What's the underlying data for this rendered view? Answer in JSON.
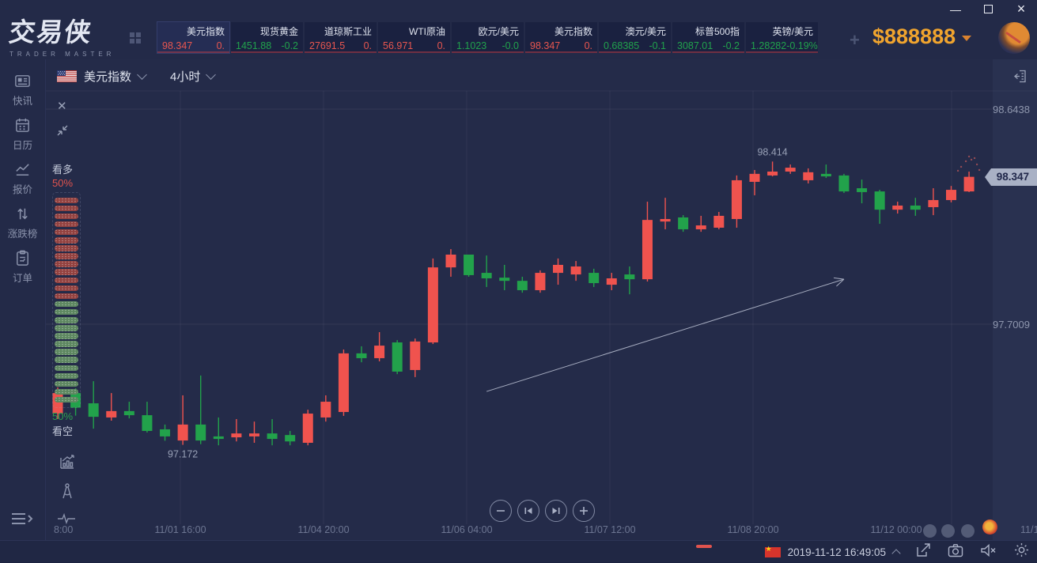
{
  "window": {
    "minimize": "—",
    "maximize": "",
    "close": "×"
  },
  "topbar": {
    "logo_title": "交易侠",
    "logo_subtitle": "TRADER MASTER",
    "balance": "$888888",
    "tabs": [
      {
        "name": "美元指数",
        "price": "98.347",
        "change": "0.",
        "dir": "up"
      },
      {
        "name": "现货黄金",
        "price": "1451.88",
        "change": "-0.2",
        "dir": "down"
      },
      {
        "name": "道琼斯工业",
        "price": "27691.5",
        "change": "0.",
        "dir": "up"
      },
      {
        "name": "WTI原油",
        "price": "56.971",
        "change": "0.",
        "dir": "up"
      },
      {
        "name": "欧元/美元",
        "price": "1.1023",
        "change": "-0.0",
        "dir": "down"
      },
      {
        "name": "美元指数",
        "price": "98.347",
        "change": "0.",
        "dir": "up"
      },
      {
        "name": "澳元/美元",
        "price": "0.68385",
        "change": "-0.1",
        "dir": "down"
      },
      {
        "name": "标普500指",
        "price": "3087.01",
        "change": "-0.2",
        "dir": "down"
      },
      {
        "name": "英镑/美元",
        "price": "1.28282",
        "change": "-0.19%",
        "dir": "down"
      }
    ]
  },
  "sidebar": {
    "items": [
      {
        "label": "快讯",
        "icon": "news-icon"
      },
      {
        "label": "日历",
        "icon": "calendar-icon"
      },
      {
        "label": "报价",
        "icon": "quotes-icon"
      },
      {
        "label": "涨跌榜",
        "icon": "updown-icon"
      },
      {
        "label": "订单",
        "icon": "order-icon"
      }
    ]
  },
  "chart_header": {
    "flag": "us-flag",
    "symbol": "美元指数",
    "timeframe": "4小时"
  },
  "sentiment": {
    "bull_label": "看多",
    "bull_pct": "50%",
    "bear_pct": "50%",
    "bear_label": "看空"
  },
  "chart_data": {
    "type": "candlestick",
    "symbol": "美元指数",
    "timeframe": "4小时",
    "up_color": "#f0534e",
    "down_color": "#22a24b",
    "y_axis_labels": [
      "98.6438",
      "97.7009"
    ],
    "current_price": "98.347",
    "x_axis_labels": [
      "8:00",
      "11/01 16:00",
      "11/04 20:00",
      "11/06 04:00",
      "11/07 12:00",
      "11/08 20:00",
      "11/12 00:00",
      "11/1"
    ],
    "annotations": [
      {
        "text": "98.414",
        "candle_index": 40,
        "position": "above"
      },
      {
        "text": "97.172",
        "candle_index": 7,
        "position": "below"
      }
    ],
    "trendline": {
      "from": {
        "index": 24,
        "price": 97.406
      },
      "to": {
        "index": 44,
        "price": 97.898
      }
    },
    "candles": [
      {
        "o": 97.309,
        "h": 97.424,
        "l": 97.285,
        "c": 97.399
      },
      {
        "o": 97.399,
        "h": 97.42,
        "l": 97.3,
        "c": 97.335
      },
      {
        "o": 97.354,
        "h": 97.451,
        "l": 97.243,
        "c": 97.295
      },
      {
        "o": 97.292,
        "h": 97.399,
        "l": 97.278,
        "c": 97.32
      },
      {
        "o": 97.32,
        "h": 97.361,
        "l": 97.288,
        "c": 97.302
      },
      {
        "o": 97.302,
        "h": 97.361,
        "l": 97.226,
        "c": 97.233
      },
      {
        "o": 97.24,
        "h": 97.261,
        "l": 97.19,
        "c": 97.209
      },
      {
        "o": 97.191,
        "h": 97.389,
        "l": 97.172,
        "c": 97.261
      },
      {
        "o": 97.261,
        "h": 97.476,
        "l": 97.175,
        "c": 97.191
      },
      {
        "o": 97.209,
        "h": 97.292,
        "l": 97.17,
        "c": 97.198
      },
      {
        "o": 97.205,
        "h": 97.285,
        "l": 97.187,
        "c": 97.222
      },
      {
        "o": 97.209,
        "h": 97.274,
        "l": 97.181,
        "c": 97.222
      },
      {
        "o": 97.222,
        "h": 97.285,
        "l": 97.17,
        "c": 97.198
      },
      {
        "o": 97.215,
        "h": 97.233,
        "l": 97.17,
        "c": 97.187
      },
      {
        "o": 97.181,
        "h": 97.326,
        "l": 97.17,
        "c": 97.309
      },
      {
        "o": 97.292,
        "h": 97.389,
        "l": 97.274,
        "c": 97.361
      },
      {
        "o": 97.316,
        "h": 97.59,
        "l": 97.299,
        "c": 97.573
      },
      {
        "o": 97.573,
        "h": 97.604,
        "l": 97.534,
        "c": 97.552
      },
      {
        "o": 97.552,
        "h": 97.666,
        "l": 97.538,
        "c": 97.607
      },
      {
        "o": 97.621,
        "h": 97.631,
        "l": 97.482,
        "c": 97.493
      },
      {
        "o": 97.5,
        "h": 97.638,
        "l": 97.469,
        "c": 97.625
      },
      {
        "o": 97.621,
        "h": 97.989,
        "l": 97.614,
        "c": 97.95
      },
      {
        "o": 97.95,
        "h": 98.03,
        "l": 97.909,
        "c": 98.006
      },
      {
        "o": 98.006,
        "h": 98.006,
        "l": 97.909,
        "c": 97.916
      },
      {
        "o": 97.926,
        "h": 98.002,
        "l": 97.864,
        "c": 97.902
      },
      {
        "o": 97.905,
        "h": 97.961,
        "l": 97.85,
        "c": 97.891
      },
      {
        "o": 97.891,
        "h": 97.909,
        "l": 97.839,
        "c": 97.85
      },
      {
        "o": 97.85,
        "h": 97.937,
        "l": 97.839,
        "c": 97.926
      },
      {
        "o": 97.926,
        "h": 97.989,
        "l": 97.874,
        "c": 97.961
      },
      {
        "o": 97.919,
        "h": 97.978,
        "l": 97.891,
        "c": 97.954
      },
      {
        "o": 97.926,
        "h": 97.944,
        "l": 97.864,
        "c": 97.881
      },
      {
        "o": 97.874,
        "h": 97.926,
        "l": 97.85,
        "c": 97.902
      },
      {
        "o": 97.919,
        "h": 97.954,
        "l": 97.832,
        "c": 97.898
      },
      {
        "o": 97.898,
        "h": 98.238,
        "l": 97.888,
        "c": 98.158
      },
      {
        "o": 98.151,
        "h": 98.255,
        "l": 98.117,
        "c": 98.162
      },
      {
        "o": 98.169,
        "h": 98.179,
        "l": 98.106,
        "c": 98.117
      },
      {
        "o": 98.117,
        "h": 98.176,
        "l": 98.106,
        "c": 98.134
      },
      {
        "o": 98.124,
        "h": 98.193,
        "l": 98.117,
        "c": 98.176
      },
      {
        "o": 98.162,
        "h": 98.353,
        "l": 98.124,
        "c": 98.332
      },
      {
        "o": 98.325,
        "h": 98.377,
        "l": 98.266,
        "c": 98.36
      },
      {
        "o": 98.353,
        "h": 98.414,
        "l": 98.349,
        "c": 98.37
      },
      {
        "o": 98.37,
        "h": 98.401,
        "l": 98.36,
        "c": 98.387
      },
      {
        "o": 98.332,
        "h": 98.384,
        "l": 98.318,
        "c": 98.367
      },
      {
        "o": 98.36,
        "h": 98.401,
        "l": 98.342,
        "c": 98.349
      },
      {
        "o": 98.353,
        "h": 98.36,
        "l": 98.276,
        "c": 98.283
      },
      {
        "o": 98.297,
        "h": 98.335,
        "l": 98.231,
        "c": 98.28
      },
      {
        "o": 98.283,
        "h": 98.29,
        "l": 98.141,
        "c": 98.203
      },
      {
        "o": 98.203,
        "h": 98.238,
        "l": 98.186,
        "c": 98.221
      },
      {
        "o": 98.221,
        "h": 98.255,
        "l": 98.176,
        "c": 98.203
      },
      {
        "o": 98.214,
        "h": 98.297,
        "l": 98.179,
        "c": 98.245
      },
      {
        "o": 98.245,
        "h": 98.307,
        "l": 98.235,
        "c": 98.29
      },
      {
        "o": 98.283,
        "h": 98.37,
        "l": 98.28,
        "c": 98.347
      }
    ]
  },
  "statusbar": {
    "datetime": "2019-11-12 16:49:05"
  },
  "colors": {
    "background": "#242b49",
    "topbar": "#232a48",
    "up": "#f0534e",
    "down": "#22a24b",
    "gold": "#f0a42e",
    "muted_text": "#8b93ac"
  }
}
